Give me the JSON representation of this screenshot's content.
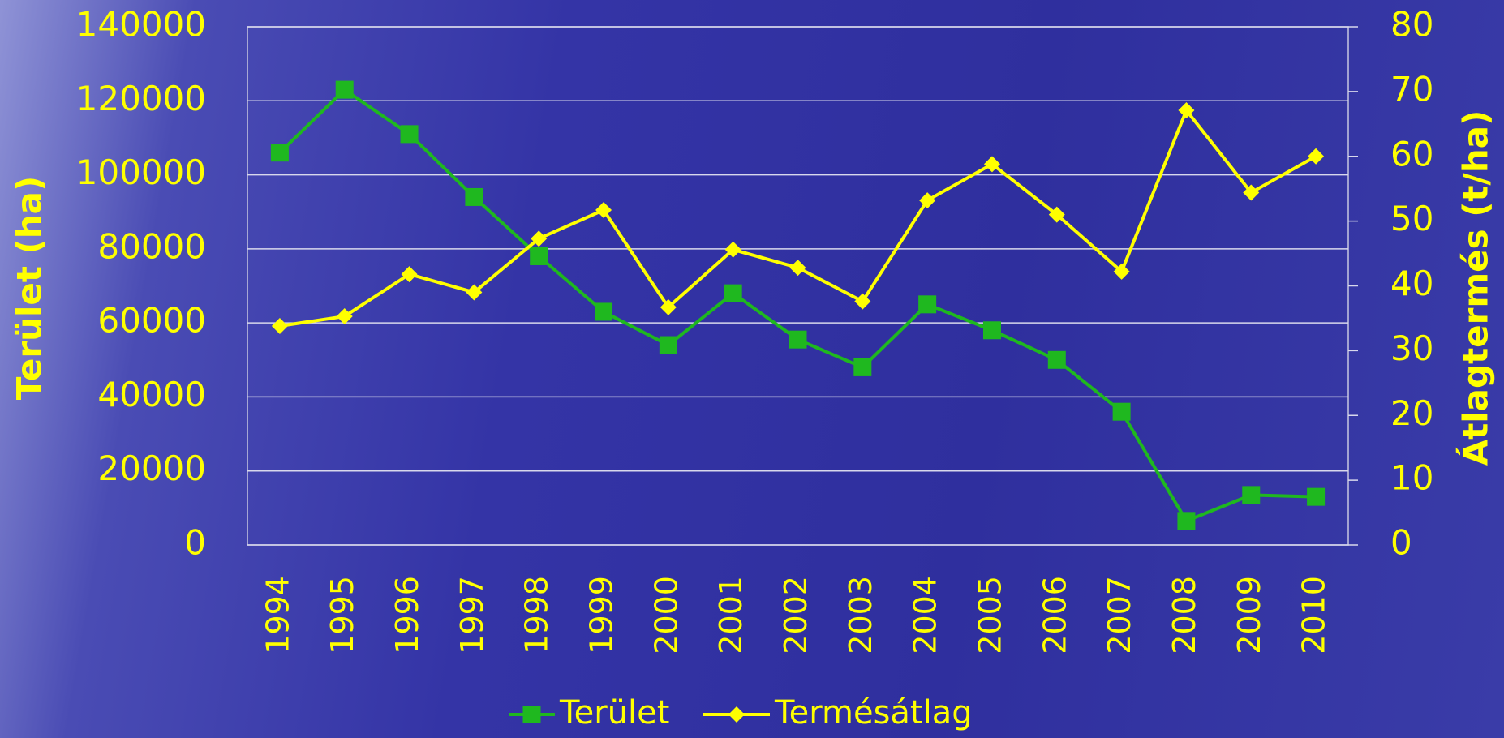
{
  "chart_data": {
    "type": "line",
    "categories": [
      "1994",
      "1995",
      "1996",
      "1997",
      "1998",
      "1999",
      "2000",
      "2001",
      "2002",
      "2003",
      "2004",
      "2005",
      "2006",
      "2007",
      "2008",
      "2009",
      "2010"
    ],
    "series": [
      {
        "name": "Terület",
        "color": "#1fb81f",
        "marker": "square",
        "axis": "y",
        "values": [
          106000,
          123000,
          111000,
          94000,
          78000,
          63000,
          54000,
          68000,
          55500,
          48000,
          65000,
          58000,
          50000,
          36000,
          6500,
          13500,
          13000
        ]
      },
      {
        "name": "Termésátlag",
        "color": "#ffff00",
        "marker": "diamond",
        "axis": "y2",
        "values": [
          33.8,
          35.3,
          41.8,
          39.0,
          47.3,
          51.7,
          36.7,
          45.6,
          42.8,
          37.6,
          53.2,
          58.8,
          51.0,
          42.2,
          67.1,
          54.4,
          60.0
        ]
      }
    ],
    "y_label": "Terület (ha)",
    "y2_label": "Átlagtermés (t/ha)",
    "ylim": [
      0,
      140000
    ],
    "yticks": [
      0,
      20000,
      40000,
      60000,
      80000,
      100000,
      120000,
      140000
    ],
    "y2lim": [
      0,
      80
    ],
    "y2ticks": [
      0,
      10,
      20,
      30,
      40,
      50,
      60,
      70,
      80
    ],
    "grid": true,
    "legend": "bottom"
  }
}
